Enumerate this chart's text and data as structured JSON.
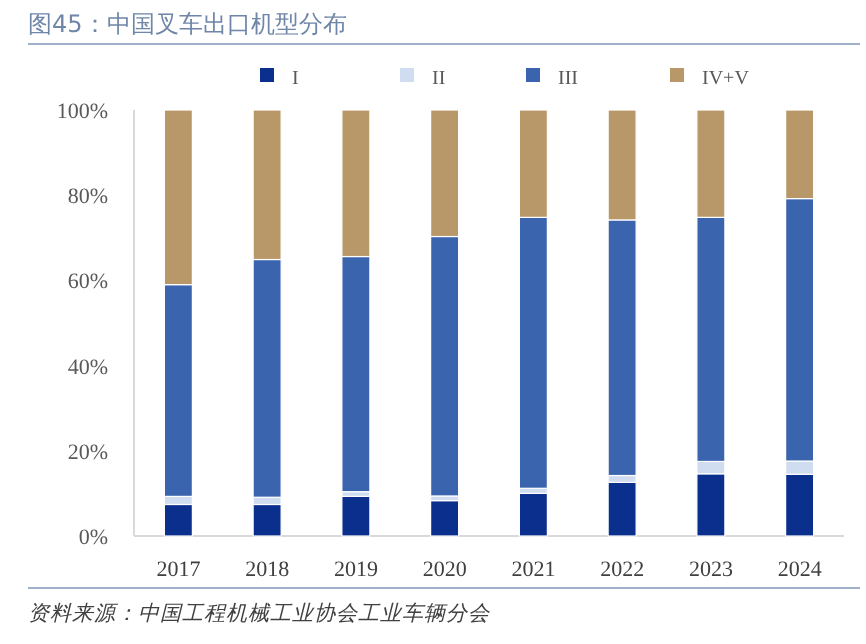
{
  "chart_data": {
    "type": "bar",
    "stacked": true,
    "title": "图45：中国叉车出口机型分布",
    "annotations": [
      "资料来源：中国工程机械工业协会工业车辆分会"
    ],
    "categories": [
      "2017",
      "2018",
      "2019",
      "2020",
      "2021",
      "2022",
      "2023",
      "2024"
    ],
    "series": [
      {
        "name": "I",
        "color": "#0a2f8c",
        "values": [
          7.4,
          7.4,
          9.3,
          8.3,
          10.0,
          12.6,
          14.6,
          14.5
        ]
      },
      {
        "name": "II",
        "color": "#d0dcf0",
        "values": [
          1.9,
          1.7,
          1.1,
          1.1,
          1.2,
          1.6,
          2.9,
          3.1
        ]
      },
      {
        "name": "III",
        "color": "#3a64ae",
        "values": [
          49.7,
          55.8,
          55.2,
          60.9,
          63.6,
          60.0,
          57.3,
          61.6
        ]
      },
      {
        "name": "IV+V",
        "color": "#b89868",
        "values": [
          41.0,
          35.1,
          34.4,
          29.7,
          25.2,
          25.8,
          25.2,
          20.8
        ]
      }
    ],
    "ylim": [
      0,
      100
    ],
    "yticks": [
      {
        "value": 0,
        "label": "0%"
      },
      {
        "value": 20,
        "label": "20%"
      },
      {
        "value": 40,
        "label": "40%"
      },
      {
        "value": 60,
        "label": "60%"
      },
      {
        "value": 80,
        "label": "80%"
      },
      {
        "value": 100,
        "label": "100%"
      }
    ],
    "legend": "top",
    "grid": false
  }
}
